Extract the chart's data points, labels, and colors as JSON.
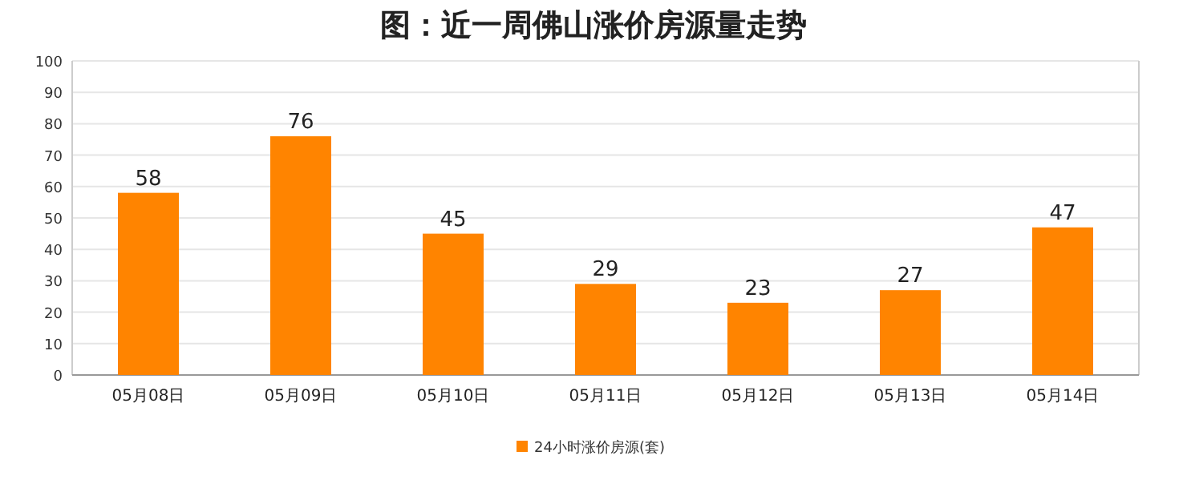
{
  "chart_data": {
    "type": "bar",
    "title": "图：近一周佛山涨价房源量走势",
    "categories": [
      "05月08日",
      "05月09日",
      "05月10日",
      "05月11日",
      "05月12日",
      "05月13日",
      "05月14日"
    ],
    "series": [
      {
        "name": "24小时涨价房源(套)",
        "color": "#ff8400",
        "values": [
          58,
          76,
          45,
          29,
          23,
          27,
          47
        ]
      }
    ],
    "ylim": [
      0,
      100
    ],
    "yticks": [
      0,
      10,
      20,
      30,
      40,
      50,
      60,
      70,
      80,
      90,
      100
    ],
    "grid": "y",
    "legend": "bottom",
    "data_labels": true
  }
}
